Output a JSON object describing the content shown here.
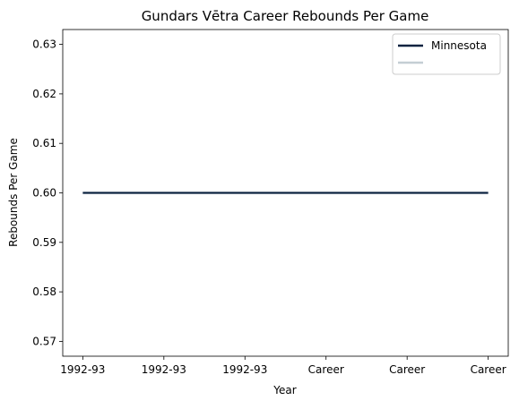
{
  "chart_data": {
    "type": "line",
    "title": "Gundars Vētra Career Rebounds Per Game",
    "xlabel": "Year",
    "ylabel": "Rebounds Per Game",
    "categories": [
      "1992-93",
      "1992-93",
      "1992-93",
      "Career",
      "Career",
      "Career"
    ],
    "series": [
      {
        "name": "Minnesota",
        "values": [
          0.6,
          0.6,
          0.6,
          0.6,
          0.6,
          0.6
        ],
        "color": "#0c2340"
      }
    ],
    "legend_entries": [
      {
        "label": "Minnesota",
        "color": "#0c2340"
      },
      {
        "label": "",
        "color": "#c4ced4"
      }
    ],
    "ylim": [
      0.567,
      0.633
    ],
    "yticks": [
      0.57,
      0.58,
      0.59,
      0.6,
      0.61,
      0.62,
      0.63
    ],
    "grid": false,
    "legend_position": "top-right"
  }
}
